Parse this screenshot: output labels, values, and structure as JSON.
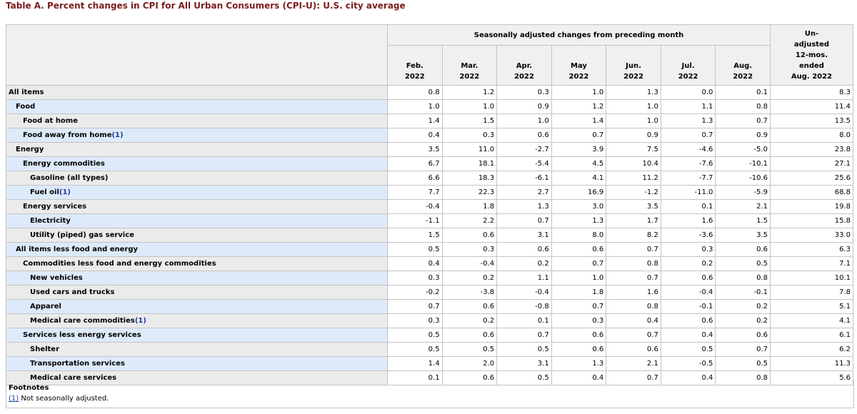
{
  "title": "Table A. Percent changes in CPI for All Urban Consumers (CPI-U): U.S. city average",
  "header": {
    "group_label": "Seasonally adjusted changes from preceding month",
    "months": [
      {
        "line1": "Feb.",
        "line2": "2022"
      },
      {
        "line1": "Mar.",
        "line2": "2022"
      },
      {
        "line1": "Apr.",
        "line2": "2022"
      },
      {
        "line1": "May",
        "line2": "2022"
      },
      {
        "line1": "Jun.",
        "line2": "2022"
      },
      {
        "line1": "Jul.",
        "line2": "2022"
      },
      {
        "line1": "Aug.",
        "line2": "2022"
      }
    ],
    "unadjusted_lines": [
      "Un-",
      "adjusted",
      "12-mos.",
      "ended",
      "Aug. 2022"
    ]
  },
  "rows": [
    {
      "label": "All items",
      "level": 0,
      "fn": "",
      "values": [
        "0.8",
        "1.2",
        "0.3",
        "1.0",
        "1.3",
        "0.0",
        "0.1",
        "8.3"
      ]
    },
    {
      "label": "Food",
      "level": 1,
      "fn": "",
      "values": [
        "1.0",
        "1.0",
        "0.9",
        "1.2",
        "1.0",
        "1.1",
        "0.8",
        "11.4"
      ]
    },
    {
      "label": "Food at home",
      "level": 2,
      "fn": "",
      "values": [
        "1.4",
        "1.5",
        "1.0",
        "1.4",
        "1.0",
        "1.3",
        "0.7",
        "13.5"
      ]
    },
    {
      "label": "Food away from home",
      "level": 2,
      "fn": "(1)",
      "values": [
        "0.4",
        "0.3",
        "0.6",
        "0.7",
        "0.9",
        "0.7",
        "0.9",
        "8.0"
      ]
    },
    {
      "label": "Energy",
      "level": 1,
      "fn": "",
      "values": [
        "3.5",
        "11.0",
        "-2.7",
        "3.9",
        "7.5",
        "-4.6",
        "-5.0",
        "23.8"
      ]
    },
    {
      "label": "Energy commodities",
      "level": 2,
      "fn": "",
      "values": [
        "6.7",
        "18.1",
        "-5.4",
        "4.5",
        "10.4",
        "-7.6",
        "-10.1",
        "27.1"
      ]
    },
    {
      "label": "Gasoline (all types)",
      "level": 3,
      "fn": "",
      "values": [
        "6.6",
        "18.3",
        "-6.1",
        "4.1",
        "11.2",
        "-7.7",
        "-10.6",
        "25.6"
      ]
    },
    {
      "label": "Fuel oil",
      "level": 3,
      "fn": "(1)",
      "values": [
        "7.7",
        "22.3",
        "2.7",
        "16.9",
        "-1.2",
        "-11.0",
        "-5.9",
        "68.8"
      ]
    },
    {
      "label": "Energy services",
      "level": 2,
      "fn": "",
      "values": [
        "-0.4",
        "1.8",
        "1.3",
        "3.0",
        "3.5",
        "0.1",
        "2.1",
        "19.8"
      ]
    },
    {
      "label": "Electricity",
      "level": 3,
      "fn": "",
      "values": [
        "-1.1",
        "2.2",
        "0.7",
        "1.3",
        "1.7",
        "1.6",
        "1.5",
        "15.8"
      ]
    },
    {
      "label": "Utility (piped) gas service",
      "level": 3,
      "fn": "",
      "values": [
        "1.5",
        "0.6",
        "3.1",
        "8.0",
        "8.2",
        "-3.6",
        "3.5",
        "33.0"
      ]
    },
    {
      "label": "All items less food and energy",
      "level": 1,
      "fn": "",
      "values": [
        "0.5",
        "0.3",
        "0.6",
        "0.6",
        "0.7",
        "0.3",
        "0.6",
        "6.3"
      ]
    },
    {
      "label": "Commodities less food and energy commodities",
      "level": 2,
      "fn": "",
      "values": [
        "0.4",
        "-0.4",
        "0.2",
        "0.7",
        "0.8",
        "0.2",
        "0.5",
        "7.1"
      ]
    },
    {
      "label": "New vehicles",
      "level": 3,
      "fn": "",
      "values": [
        "0.3",
        "0.2",
        "1.1",
        "1.0",
        "0.7",
        "0.6",
        "0.8",
        "10.1"
      ]
    },
    {
      "label": "Used cars and trucks",
      "level": 3,
      "fn": "",
      "values": [
        "-0.2",
        "-3.8",
        "-0.4",
        "1.8",
        "1.6",
        "-0.4",
        "-0.1",
        "7.8"
      ]
    },
    {
      "label": "Apparel",
      "level": 3,
      "fn": "",
      "values": [
        "0.7",
        "0.6",
        "-0.8",
        "0.7",
        "0.8",
        "-0.1",
        "0.2",
        "5.1"
      ]
    },
    {
      "label": "Medical care commodities",
      "level": 3,
      "fn": "(1)",
      "values": [
        "0.3",
        "0.2",
        "0.1",
        "0.3",
        "0.4",
        "0.6",
        "0.2",
        "4.1"
      ]
    },
    {
      "label": "Services less energy services",
      "level": 2,
      "fn": "",
      "values": [
        "0.5",
        "0.6",
        "0.7",
        "0.6",
        "0.7",
        "0.4",
        "0.6",
        "6.1"
      ]
    },
    {
      "label": "Shelter",
      "level": 3,
      "fn": "",
      "values": [
        "0.5",
        "0.5",
        "0.5",
        "0.6",
        "0.6",
        "0.5",
        "0.7",
        "6.2"
      ]
    },
    {
      "label": "Transportation services",
      "level": 3,
      "fn": "",
      "values": [
        "1.4",
        "2.0",
        "3.1",
        "1.3",
        "2.1",
        "-0.5",
        "0.5",
        "11.3"
      ]
    },
    {
      "label": "Medical care services",
      "level": 3,
      "fn": "",
      "values": [
        "0.1",
        "0.6",
        "0.5",
        "0.4",
        "0.7",
        "0.4",
        "0.8",
        "5.6"
      ]
    }
  ],
  "footnotes": {
    "heading": "Footnotes",
    "items": [
      {
        "marker": "(1)",
        "text": " Not seasonally adjusted."
      }
    ]
  }
}
